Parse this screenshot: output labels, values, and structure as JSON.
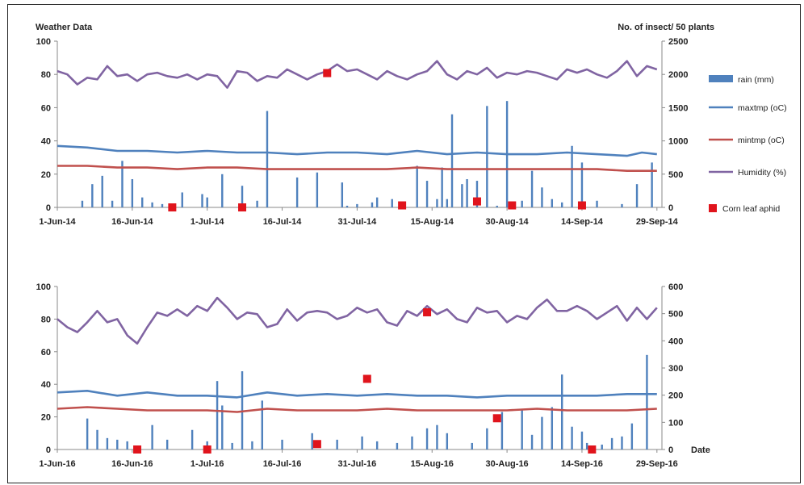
{
  "chart_data": [
    {
      "type": "line",
      "y_left_label": "Weather  Data",
      "y_right_label": "No. of insect/ 50 plants",
      "ylim_left": [
        0,
        100
      ],
      "ylim_right": [
        0,
        2500
      ],
      "yticks_left": [
        "0",
        "20",
        "40",
        "60",
        "80",
        "100"
      ],
      "yticks_right": [
        "0",
        "500",
        "1000",
        "1500",
        "2000",
        "2500"
      ],
      "x_range": [
        "2014-06-01",
        "2014-09-30"
      ],
      "xtick_labels": [
        "1-Jun-14",
        "16-Jun-14",
        "1-Jul-14",
        "16-Jul-14",
        "31-Jul-14",
        "15-Aug-14",
        "30-Aug-14",
        "14-Sep-14",
        "29-Sep-14"
      ],
      "legend": {
        "placement": "right",
        "entries": [
          {
            "label": "rain (mm)",
            "color": "#4f81bd",
            "kind": "bar"
          },
          {
            "label": "maxtmp (oC)",
            "color": "#4f81bd",
            "kind": "line"
          },
          {
            "label": "mintmp (oC)",
            "color": "#c0504d",
            "kind": "line"
          },
          {
            "label": "Humidity (%)",
            "color": "#8064a2",
            "kind": "line"
          },
          {
            "label": "Corn leaf aphid",
            "color": "#e0141c",
            "kind": "marker"
          }
        ]
      },
      "series": [
        {
          "name": "Humidity (%)",
          "axis": "left",
          "color": "#8064a2",
          "day": [
            0,
            2,
            4,
            6,
            8,
            10,
            12,
            14,
            16,
            18,
            20,
            22,
            24,
            26,
            28,
            30,
            32,
            34,
            36,
            38,
            40,
            42,
            44,
            46,
            48,
            50,
            52,
            54,
            56,
            58,
            60,
            62,
            64,
            66,
            68,
            70,
            72,
            74,
            76,
            78,
            80,
            82,
            84,
            86,
            88,
            90,
            92,
            94,
            96,
            98,
            100,
            102,
            104,
            106,
            108,
            110,
            112,
            114,
            116,
            118,
            120
          ],
          "values": [
            82,
            80,
            74,
            78,
            77,
            85,
            79,
            80,
            76,
            80,
            81,
            79,
            78,
            80,
            77,
            80,
            79,
            72,
            82,
            81,
            76,
            79,
            78,
            83,
            80,
            77,
            80,
            82,
            86,
            82,
            83,
            80,
            77,
            82,
            79,
            77,
            80,
            82,
            88,
            80,
            77,
            82,
            80,
            84,
            78,
            81,
            80,
            82,
            81,
            79,
            77,
            83,
            81,
            83,
            80,
            78,
            82,
            88,
            79,
            85,
            83
          ]
        },
        {
          "name": "maxtmp (oC)",
          "axis": "left",
          "color": "#4f81bd",
          "day": [
            0,
            6,
            12,
            18,
            24,
            30,
            36,
            42,
            48,
            54,
            60,
            66,
            72,
            78,
            84,
            90,
            96,
            102,
            108,
            114,
            117,
            120
          ],
          "values": [
            37,
            36,
            34,
            34,
            33,
            34,
            33,
            33,
            32,
            33,
            33,
            32,
            34,
            32,
            33,
            32,
            32,
            33,
            32,
            31,
            33,
            32
          ]
        },
        {
          "name": "mintmp (oC)",
          "axis": "left",
          "color": "#c0504d",
          "day": [
            0,
            6,
            12,
            18,
            24,
            30,
            36,
            42,
            48,
            54,
            60,
            66,
            72,
            78,
            84,
            90,
            96,
            102,
            108,
            114,
            120
          ],
          "values": [
            25,
            25,
            24,
            24,
            23,
            24,
            24,
            23,
            23,
            23,
            23,
            23,
            24,
            23,
            23,
            23,
            23,
            23,
            23,
            22,
            22
          ]
        },
        {
          "name": "rain (mm)",
          "axis": "left",
          "color": "#4f81bd",
          "kind": "bar",
          "day": [
            5,
            7,
            9,
            11,
            13,
            15,
            17,
            19,
            21,
            25,
            29,
            30,
            33,
            37,
            40,
            42,
            48,
            52,
            57,
            58,
            60,
            63,
            64,
            67,
            72,
            74,
            76,
            77,
            78,
            79,
            81,
            82,
            84,
            86,
            88,
            90,
            93,
            95,
            97,
            99,
            101,
            103,
            105,
            108,
            113,
            116,
            119
          ],
          "values": [
            4,
            14,
            19,
            4,
            28,
            17,
            6,
            3,
            2,
            9,
            8,
            6,
            20,
            13,
            4,
            58,
            18,
            21,
            15,
            1,
            2,
            3,
            6,
            5,
            25,
            16,
            5,
            24,
            5,
            56,
            14,
            17,
            16,
            61,
            1,
            64,
            4,
            22,
            12,
            5,
            3,
            37,
            27,
            4,
            2,
            14,
            27
          ]
        },
        {
          "name": "Corn leaf aphid",
          "axis": "right",
          "color": "#e0141c",
          "kind": "scatter",
          "day": [
            23,
            37,
            54,
            69,
            84,
            91,
            105
          ],
          "values": [
            0,
            0,
            2020,
            30,
            90,
            30,
            30
          ]
        }
      ]
    },
    {
      "type": "line",
      "ylim_left": [
        0,
        100
      ],
      "ylim_right": [
        0,
        600
      ],
      "yticks_left": [
        "0",
        "20",
        "40",
        "60",
        "80",
        "100"
      ],
      "yticks_right": [
        "0",
        "100",
        "200",
        "300",
        "400",
        "500",
        "600"
      ],
      "x_range": [
        "2016-06-01",
        "2016-09-30"
      ],
      "xtick_labels": [
        "1-Jun-16",
        "16-Jun-16",
        "1-Jul-16",
        "16-Jul-16",
        "31-Jul-16",
        "15-Aug-16",
        "30-Aug-16",
        "14-Sep-16",
        "29-Sep-16"
      ],
      "right_axis_extra_label": "Date",
      "series": [
        {
          "name": "Humidity (%)",
          "axis": "left",
          "color": "#8064a2",
          "day": [
            0,
            2,
            4,
            6,
            8,
            10,
            12,
            14,
            16,
            18,
            20,
            22,
            24,
            26,
            28,
            30,
            32,
            34,
            36,
            38,
            40,
            42,
            44,
            46,
            48,
            50,
            52,
            54,
            56,
            58,
            60,
            62,
            64,
            66,
            68,
            70,
            72,
            74,
            76,
            78,
            80,
            82,
            84,
            86,
            88,
            90,
            92,
            94,
            96,
            98,
            100,
            102,
            104,
            106,
            108,
            110,
            112,
            114,
            116,
            118,
            120
          ],
          "values": [
            80,
            75,
            72,
            78,
            85,
            78,
            80,
            70,
            65,
            75,
            84,
            82,
            86,
            82,
            88,
            85,
            93,
            87,
            80,
            84,
            83,
            75,
            77,
            86,
            79,
            84,
            85,
            84,
            80,
            82,
            87,
            84,
            86,
            78,
            76,
            85,
            82,
            88,
            83,
            86,
            80,
            78,
            87,
            84,
            85,
            78,
            82,
            80,
            87,
            92,
            85,
            85,
            88,
            85,
            80,
            84,
            88,
            79,
            87,
            80,
            87
          ]
        },
        {
          "name": "maxtmp (oC)",
          "axis": "left",
          "color": "#4f81bd",
          "day": [
            0,
            6,
            12,
            18,
            24,
            30,
            36,
            42,
            48,
            54,
            60,
            66,
            72,
            78,
            84,
            90,
            96,
            102,
            108,
            114,
            120
          ],
          "values": [
            35,
            36,
            33,
            35,
            33,
            33,
            32,
            35,
            33,
            34,
            33,
            34,
            33,
            33,
            32,
            33,
            33,
            33,
            33,
            34,
            34
          ]
        },
        {
          "name": "mintmp (oC)",
          "axis": "left",
          "color": "#c0504d",
          "day": [
            0,
            6,
            12,
            18,
            24,
            30,
            36,
            42,
            48,
            54,
            60,
            66,
            72,
            78,
            84,
            90,
            96,
            102,
            108,
            114,
            120
          ],
          "values": [
            25,
            26,
            25,
            24,
            24,
            24,
            23,
            25,
            24,
            24,
            24,
            25,
            24,
            24,
            24,
            24,
            25,
            24,
            24,
            24,
            25
          ]
        },
        {
          "name": "rain (mm)",
          "axis": "left",
          "color": "#4f81bd",
          "kind": "bar",
          "day": [
            6,
            8,
            10,
            12,
            14,
            19,
            22,
            27,
            30,
            32,
            33,
            35,
            37,
            39,
            41,
            45,
            51,
            56,
            61,
            64,
            68,
            71,
            74,
            76,
            78,
            83,
            86,
            89,
            93,
            95,
            97,
            99,
            101,
            103,
            105,
            106,
            109,
            111,
            113,
            115,
            118
          ],
          "values": [
            19,
            12,
            7,
            6,
            5,
            15,
            6,
            12,
            5,
            42,
            27,
            4,
            48,
            5,
            30,
            6,
            10,
            6,
            8,
            5,
            4,
            8,
            13,
            15,
            10,
            4,
            13,
            23,
            24,
            9,
            20,
            26,
            46,
            14,
            11,
            4,
            3,
            7,
            8,
            16,
            58
          ]
        },
        {
          "name": "Corn leaf aphid",
          "axis": "right",
          "color": "#e0141c",
          "kind": "scatter",
          "day": [
            16,
            30,
            52,
            62,
            74,
            88,
            107
          ],
          "values": [
            0,
            0,
            20,
            260,
            505,
            115,
            0
          ]
        }
      ]
    }
  ]
}
